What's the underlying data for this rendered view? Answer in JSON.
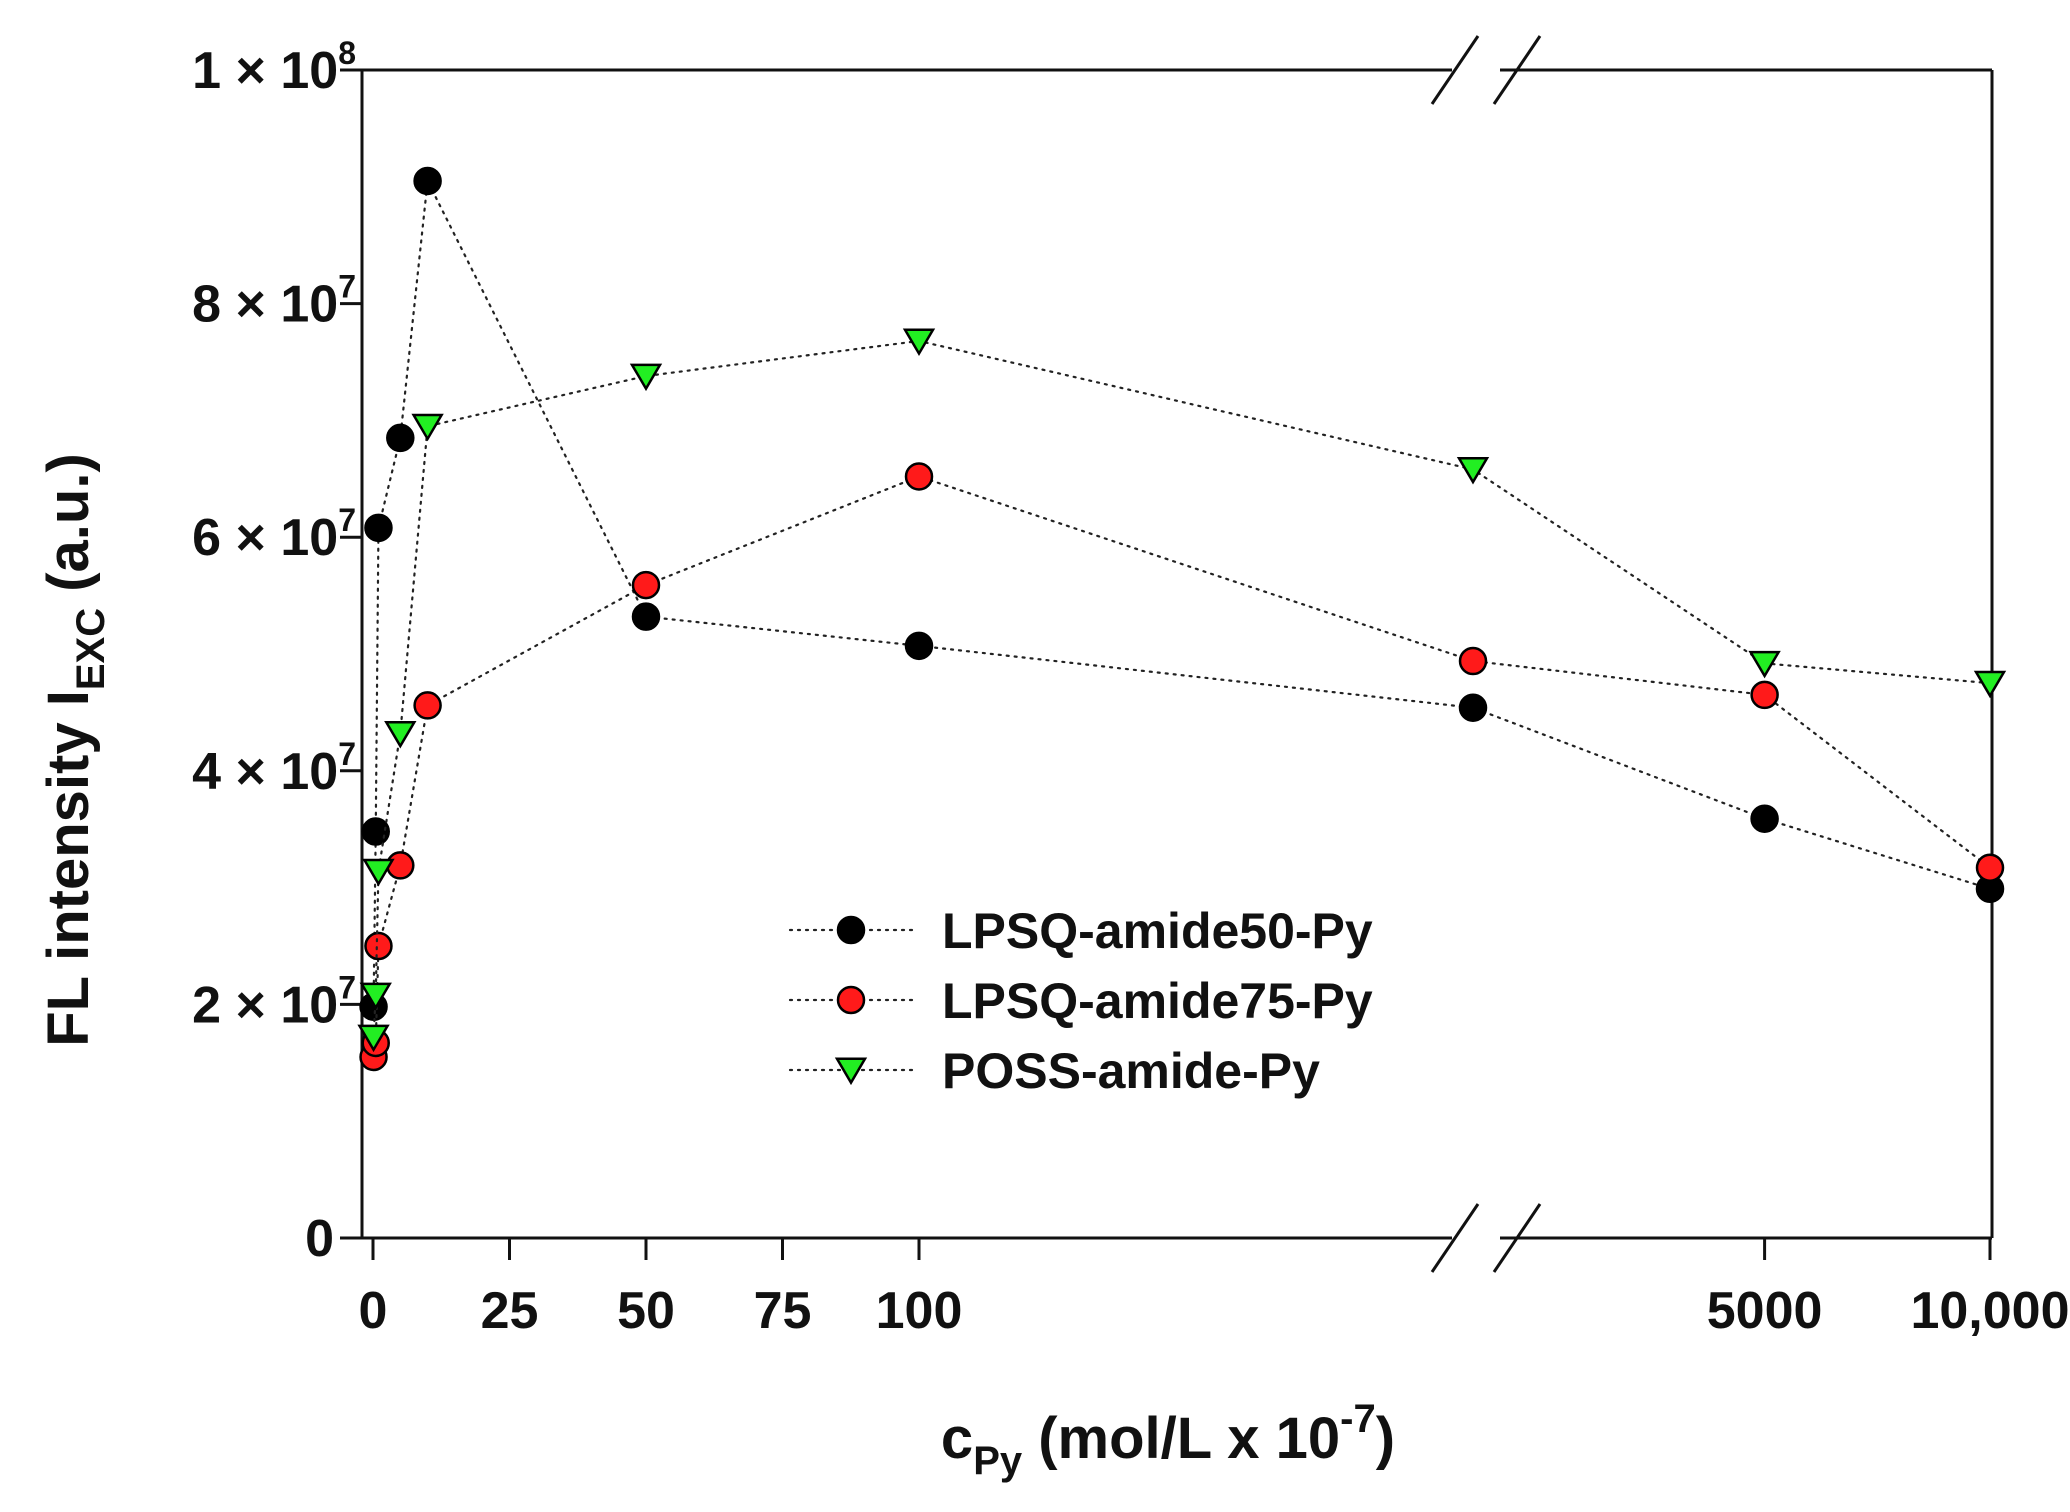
{
  "chart_data": {
    "type": "scatter",
    "line_style": "dotted",
    "y_axis": {
      "label_main": "FL intensity I",
      "label_sub": "EXC",
      "label_tail": " (a.u.)",
      "range": [
        0,
        100000000
      ],
      "ticks": [
        {
          "value": 0,
          "mantissa": "0",
          "exponent": ""
        },
        {
          "value": 20000000,
          "mantissa": "2 × 10",
          "exponent": "7"
        },
        {
          "value": 40000000,
          "mantissa": "4 × 10",
          "exponent": "7"
        },
        {
          "value": 60000000,
          "mantissa": "6 × 10",
          "exponent": "7"
        },
        {
          "value": 80000000,
          "mantissa": "8 × 10",
          "exponent": "7"
        },
        {
          "value": 100000000,
          "mantissa": "1 × 10",
          "exponent": "8"
        }
      ]
    },
    "x_axis": {
      "label_c": "c",
      "label_sub": "Py",
      "label_mid": " (mol/L x 10",
      "label_sup": "-7",
      "label_end": ")",
      "broken": true,
      "segments": [
        {
          "range": [
            0,
            100
          ]
        },
        {
          "range": [
            100,
            10000
          ]
        }
      ],
      "tick_labels": [
        {
          "value": 0,
          "label": "0"
        },
        {
          "value": 25,
          "label": "25"
        },
        {
          "value": 50,
          "label": "50"
        },
        {
          "value": 75,
          "label": "75"
        },
        {
          "value": 100,
          "label": "100"
        },
        {
          "value": 5000,
          "label": "5000"
        },
        {
          "value": 10000,
          "label": "10,000"
        }
      ]
    },
    "legend_position": "center-bottom",
    "series": [
      {
        "name": "LPSQ-amide50-Py",
        "marker": "circle",
        "color": "#000000",
        "points": [
          {
            "x": 0.1,
            "y": 19800000
          },
          {
            "x": 0.5,
            "y": 34800000
          },
          {
            "x": 1,
            "y": 60800000
          },
          {
            "x": 5,
            "y": 68500000
          },
          {
            "x": 10,
            "y": 90500000
          },
          {
            "x": 50,
            "y": 53200000
          },
          {
            "x": 100,
            "y": 50700000
          },
          {
            "x": 1000,
            "y": 45400000
          },
          {
            "x": 5000,
            "y": 35900000
          },
          {
            "x": 10000,
            "y": 29900000
          }
        ]
      },
      {
        "name": "LPSQ-amide75-Py",
        "marker": "circle",
        "color": "#ff1a1a",
        "points": [
          {
            "x": 0.1,
            "y": 15500000
          },
          {
            "x": 0.5,
            "y": 16700000
          },
          {
            "x": 1,
            "y": 25000000
          },
          {
            "x": 5,
            "y": 31900000
          },
          {
            "x": 10,
            "y": 45600000
          },
          {
            "x": 50,
            "y": 55900000
          },
          {
            "x": 100,
            "y": 65200000
          },
          {
            "x": 1000,
            "y": 49400000
          },
          {
            "x": 5000,
            "y": 46500000
          },
          {
            "x": 10000,
            "y": 31700000
          }
        ]
      },
      {
        "name": "POSS-amide-Py",
        "marker": "triangle-down",
        "color": "#22ee22",
        "points": [
          {
            "x": 0.1,
            "y": 17200000
          },
          {
            "x": 0.5,
            "y": 20800000
          },
          {
            "x": 1,
            "y": 31400000
          },
          {
            "x": 5,
            "y": 43200000
          },
          {
            "x": 10,
            "y": 69500000
          },
          {
            "x": 50,
            "y": 73800000
          },
          {
            "x": 100,
            "y": 76800000
          },
          {
            "x": 1000,
            "y": 65800000
          },
          {
            "x": 5000,
            "y": 49200000
          },
          {
            "x": 10000,
            "y": 47500000
          }
        ]
      }
    ]
  }
}
